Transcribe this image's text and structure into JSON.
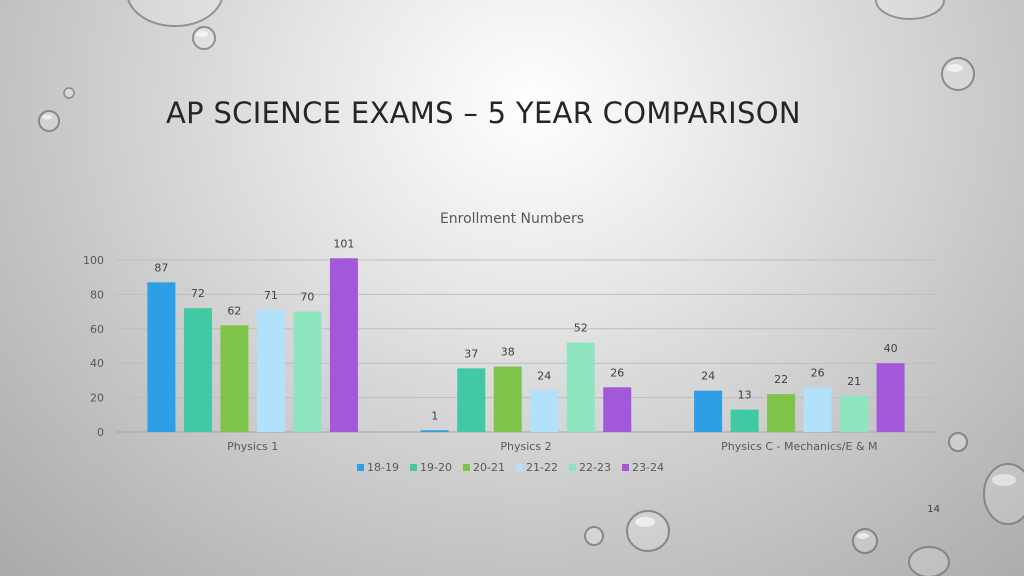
{
  "slide": {
    "title": "AP SCIENCE EXAMS – 5 YEAR COMPARISON",
    "page_number": "14"
  },
  "chart_data": {
    "type": "bar",
    "title": "Enrollment Numbers",
    "categories": [
      "Physics 1",
      "Physics 2",
      "Physics C - Mechanics/E & M"
    ],
    "series": [
      {
        "name": "18-19",
        "color": "#2c9fe6",
        "values": [
          87,
          1,
          24
        ]
      },
      {
        "name": "19-20",
        "color": "#40c9a2",
        "values": [
          72,
          37,
          13
        ]
      },
      {
        "name": "20-21",
        "color": "#80c34b",
        "values": [
          62,
          38,
          22
        ]
      },
      {
        "name": "21-22",
        "color": "#b3e0fb",
        "values": [
          71,
          24,
          26
        ]
      },
      {
        "name": "22-23",
        "color": "#8ee6c1",
        "values": [
          70,
          52,
          21
        ]
      },
      {
        "name": "23-24",
        "color": "#a259d9",
        "values": [
          101,
          26,
          40
        ]
      }
    ],
    "y_ticks": [
      "0",
      "20",
      "40",
      "60",
      "80",
      "100"
    ],
    "ylim": [
      0,
      100
    ],
    "grid": true,
    "legend_position": "bottom",
    "xlabel": "",
    "ylabel": ""
  }
}
